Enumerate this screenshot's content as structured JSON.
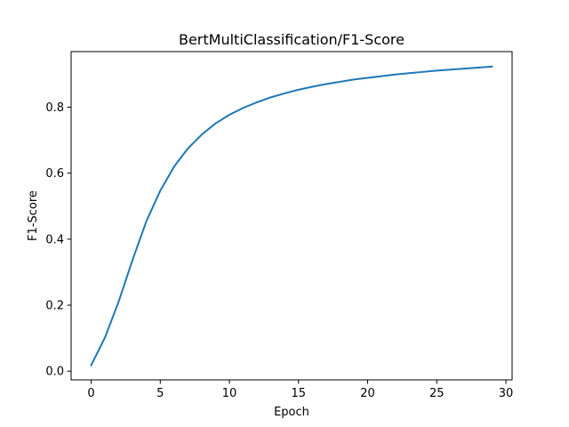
{
  "chart_data": {
    "type": "line",
    "title": "BertMultiClassification/F1-Score",
    "xlabel": "Epoch",
    "ylabel": "F1-Score",
    "xlim": [
      -1.45,
      30.45
    ],
    "ylim": [
      -0.0264,
      0.9685
    ],
    "xticks": [
      0,
      5,
      10,
      15,
      20,
      25,
      30
    ],
    "xtick_labels": [
      "0",
      "5",
      "10",
      "15",
      "20",
      "25",
      "30"
    ],
    "yticks": [
      0.0,
      0.2,
      0.4,
      0.6,
      0.8
    ],
    "ytick_labels": [
      "0.0",
      "0.2",
      "0.4",
      "0.6",
      "0.8"
    ],
    "grid": false,
    "legend": "none",
    "series": [
      {
        "color": "#1f77b4",
        "x": [
          0,
          1,
          2,
          3,
          4,
          5,
          6,
          7,
          8,
          9,
          10,
          11,
          12,
          13,
          14,
          15,
          16,
          17,
          18,
          19,
          20,
          21,
          22,
          23,
          24,
          25,
          26,
          27,
          28,
          29
        ],
        "y": [
          0.018,
          0.102,
          0.212,
          0.338,
          0.455,
          0.547,
          0.62,
          0.675,
          0.717,
          0.751,
          0.777,
          0.798,
          0.815,
          0.83,
          0.842,
          0.853,
          0.862,
          0.87,
          0.877,
          0.884,
          0.889,
          0.894,
          0.899,
          0.903,
          0.907,
          0.911,
          0.914,
          0.917,
          0.92,
          0.923
        ]
      }
    ]
  }
}
